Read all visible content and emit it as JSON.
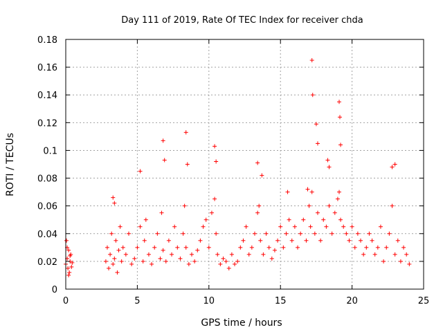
{
  "chart_data": {
    "type": "scatter",
    "title": "Day 111 of 2019, Rate Of TEC Index for receiver chda",
    "xlabel": "GPS time / hours",
    "ylabel": "ROTI / TECUs",
    "xlim": [
      0,
      25
    ],
    "ylim": [
      0,
      0.18
    ],
    "xticks": [
      0,
      5,
      10,
      15,
      20,
      25
    ],
    "xtick_labels": [
      "0",
      "5",
      "10",
      "15",
      "20",
      "25"
    ],
    "yticks": [
      0,
      0.02,
      0.04,
      0.06,
      0.08,
      0.1,
      0.12,
      0.14,
      0.16,
      0.18
    ],
    "ytick_labels": [
      "0",
      "0.02",
      "0.04",
      "0.06",
      "0.08",
      "0.1",
      "0.12",
      "0.14",
      "0.16",
      "0.18"
    ],
    "grid": true,
    "marker": "+",
    "color": "#ff0000",
    "series": [
      {
        "name": "ROTI",
        "x": [
          0.0,
          0.05,
          0.1,
          0.15,
          0.2,
          0.25,
          0.3,
          0.35,
          0.4,
          0.45,
          0.1,
          0.2,
          0.3,
          2.8,
          2.9,
          3.0,
          3.1,
          3.2,
          3.3,
          3.4,
          3.5,
          3.6,
          3.7,
          3.8,
          3.9,
          4.0,
          4.2,
          4.4,
          4.6,
          4.8,
          5.0,
          5.2,
          5.4,
          5.5,
          5.6,
          5.8,
          6.0,
          6.2,
          6.4,
          6.6,
          6.7,
          6.8,
          7.0,
          7.2,
          7.4,
          7.6,
          7.8,
          8.0,
          8.2,
          8.3,
          8.4,
          8.6,
          8.8,
          9.0,
          9.2,
          9.4,
          9.6,
          9.8,
          10.0,
          10.2,
          10.4,
          10.5,
          10.6,
          10.8,
          11.0,
          11.2,
          11.4,
          11.6,
          11.8,
          12.0,
          12.2,
          12.4,
          12.6,
          12.8,
          13.0,
          13.2,
          13.4,
          13.5,
          13.6,
          13.8,
          14.0,
          14.2,
          14.4,
          14.6,
          14.8,
          15.0,
          15.2,
          15.4,
          15.6,
          15.8,
          16.0,
          16.2,
          16.4,
          16.6,
          16.8,
          17.0,
          17.1,
          17.2,
          17.4,
          17.6,
          17.8,
          18.0,
          18.2,
          18.4,
          18.6,
          18.8,
          19.0,
          19.1,
          19.2,
          19.4,
          19.6,
          19.8,
          20.0,
          20.2,
          20.4,
          20.6,
          20.8,
          21.0,
          21.2,
          21.4,
          21.6,
          21.8,
          22.0,
          22.2,
          22.4,
          22.6,
          22.8,
          23.0,
          23.2,
          23.4,
          23.6,
          23.8,
          24.0,
          3.3,
          3.4,
          5.2,
          6.8,
          6.9,
          8.4,
          8.5,
          10.4,
          10.5,
          13.4,
          13.7,
          17.2,
          17.25,
          17.5,
          17.6,
          19.1,
          19.15,
          19.2,
          22.8,
          23.0,
          18.3,
          18.4,
          15.5,
          16.9
        ],
        "y": [
          0.018,
          0.035,
          0.022,
          0.015,
          0.028,
          0.012,
          0.02,
          0.025,
          0.016,
          0.019,
          0.03,
          0.01,
          0.024,
          0.02,
          0.03,
          0.015,
          0.025,
          0.04,
          0.018,
          0.022,
          0.035,
          0.012,
          0.028,
          0.045,
          0.02,
          0.03,
          0.025,
          0.04,
          0.018,
          0.022,
          0.03,
          0.045,
          0.02,
          0.035,
          0.05,
          0.025,
          0.018,
          0.03,
          0.04,
          0.022,
          0.055,
          0.028,
          0.02,
          0.035,
          0.025,
          0.045,
          0.03,
          0.022,
          0.04,
          0.06,
          0.03,
          0.018,
          0.025,
          0.02,
          0.028,
          0.035,
          0.045,
          0.05,
          0.03,
          0.055,
          0.065,
          0.04,
          0.025,
          0.018,
          0.022,
          0.02,
          0.015,
          0.025,
          0.018,
          0.02,
          0.03,
          0.035,
          0.045,
          0.025,
          0.03,
          0.04,
          0.055,
          0.06,
          0.035,
          0.025,
          0.04,
          0.03,
          0.022,
          0.028,
          0.035,
          0.045,
          0.03,
          0.04,
          0.05,
          0.035,
          0.045,
          0.03,
          0.04,
          0.05,
          0.035,
          0.06,
          0.045,
          0.07,
          0.04,
          0.055,
          0.035,
          0.05,
          0.045,
          0.06,
          0.04,
          0.055,
          0.065,
          0.07,
          0.05,
          0.045,
          0.04,
          0.035,
          0.045,
          0.03,
          0.04,
          0.035,
          0.025,
          0.03,
          0.04,
          0.035,
          0.025,
          0.03,
          0.045,
          0.02,
          0.03,
          0.04,
          0.06,
          0.025,
          0.035,
          0.02,
          0.03,
          0.025,
          0.018,
          0.066,
          0.062,
          0.085,
          0.107,
          0.093,
          0.113,
          0.09,
          0.103,
          0.092,
          0.091,
          0.082,
          0.165,
          0.14,
          0.119,
          0.105,
          0.135,
          0.124,
          0.104,
          0.088,
          0.09,
          0.093,
          0.088,
          0.07,
          0.072
        ]
      }
    ]
  }
}
